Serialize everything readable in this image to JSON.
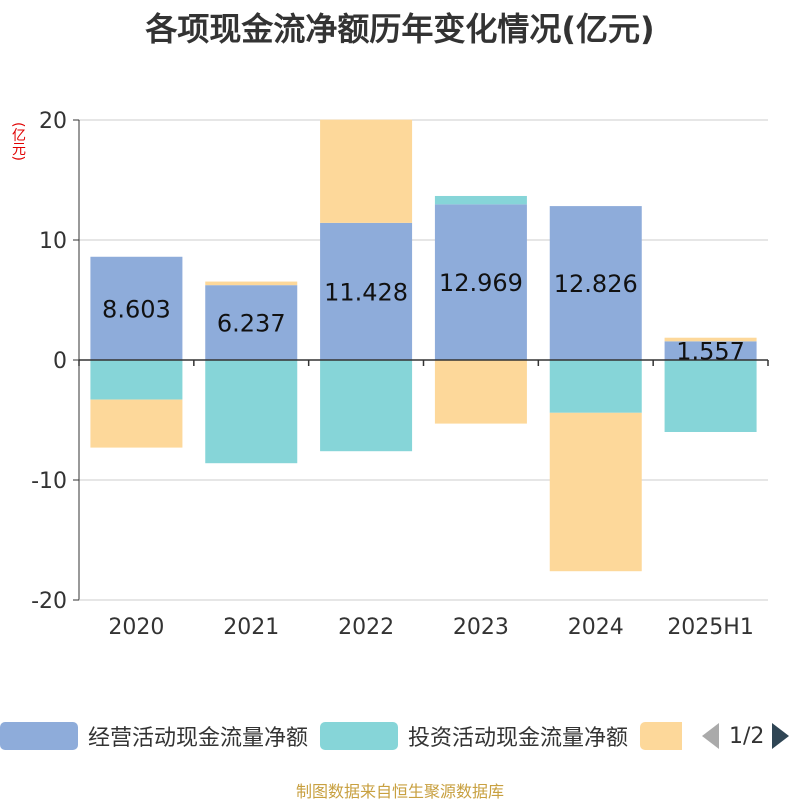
{
  "chart_data": {
    "type": "bar",
    "stacked": true,
    "title": "各项现金流净额历年变化情况(亿元)",
    "unit_label": "(亿元)",
    "categories": [
      "2020",
      "2021",
      "2022",
      "2023",
      "2024",
      "2025H1"
    ],
    "ylim": [
      -20,
      20
    ],
    "yticks": [
      20,
      10,
      0,
      -10,
      -20
    ],
    "grid": true,
    "legend_position": "bottom",
    "series": [
      {
        "name": "经营活动现金流量净额",
        "color": "#8eacda",
        "values": [
          8.603,
          6.237,
          11.428,
          12.969,
          12.826,
          1.557
        ],
        "labels": [
          "8.603",
          "6.237",
          "11.428",
          "12.969",
          "12.826",
          "1.557"
        ]
      },
      {
        "name": "投资活动现金流量净额",
        "color": "#86d5d8",
        "values": [
          -3.3,
          -8.6,
          -7.6,
          0.7,
          -4.4,
          -6.0
        ]
      },
      {
        "name": "",
        "color": "#fdd89a",
        "values": [
          -4.0,
          0.3,
          8.6,
          -5.3,
          -13.2,
          0.3
        ]
      }
    ]
  },
  "legend": {
    "items": [
      {
        "label": "经营活动现金流量净额",
        "color": "#8eacda"
      },
      {
        "label": "投资活动现金流量净额",
        "color": "#86d5d8"
      },
      {
        "label": "",
        "color": "#fdd89a"
      }
    ],
    "page": "1/2"
  },
  "source": "制图数据来自恒生聚源数据库"
}
